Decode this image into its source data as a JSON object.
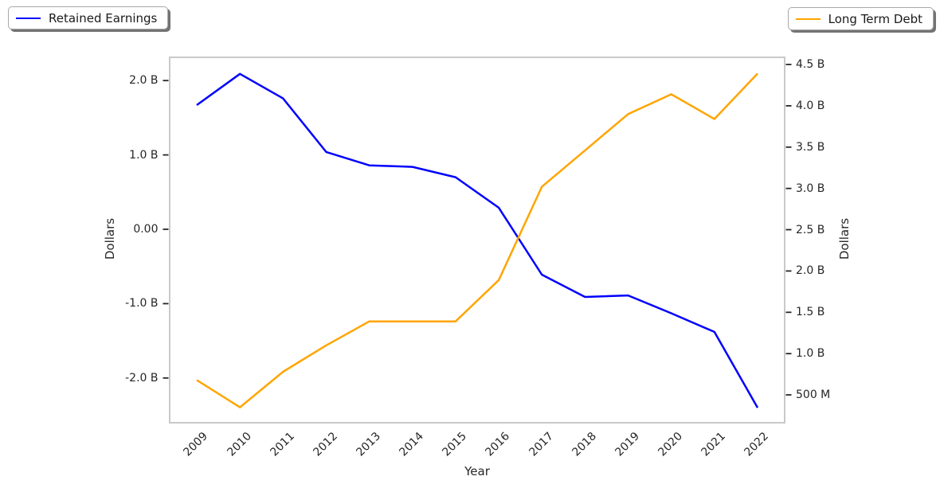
{
  "chart_data": {
    "type": "line",
    "title": "",
    "xlabel": "Year",
    "grid": false,
    "x": [
      2009,
      2010,
      2011,
      2012,
      2013,
      2014,
      2015,
      2016,
      2017,
      2018,
      2019,
      2020,
      2021,
      2022
    ],
    "x_tick_labels": [
      "2009",
      "2010",
      "2011",
      "2012",
      "2013",
      "2014",
      "2015",
      "2016",
      "2017",
      "2018",
      "2019",
      "2020",
      "2021",
      "2022"
    ],
    "units": "billions of dollars",
    "series": [
      {
        "name": "Retained Earnings",
        "axis": "left",
        "color": "#0000ff",
        "legend_position": "upper-left",
        "values_billions": [
          1.67,
          2.09,
          1.76,
          1.04,
          0.86,
          0.84,
          0.7,
          0.29,
          -0.61,
          -0.91,
          -0.89,
          -1.13,
          -1.38,
          -2.4
        ]
      },
      {
        "name": "Long Term Debt",
        "axis": "right",
        "color": "#ffa500",
        "legend_position": "upper-right",
        "values_billions": [
          0.68,
          0.35,
          0.78,
          1.1,
          1.39,
          1.39,
          1.39,
          1.89,
          3.02,
          3.46,
          3.9,
          4.14,
          3.84,
          4.39
        ]
      }
    ],
    "left_axis": {
      "label": "Dollars",
      "tick_labels": [
        "2.0 B",
        "1.0 B",
        "0.00",
        "-1.0 B",
        "-2.0 B"
      ],
      "tick_values": [
        2.0,
        1.0,
        0.0,
        -1.0,
        -2.0
      ],
      "range": [
        -2.602,
        2.313
      ]
    },
    "right_axis": {
      "label": "Dollars",
      "tick_labels": [
        "4.5 B",
        "4.0 B",
        "3.5 B",
        "3.0 B",
        "2.5 B",
        "2.0 B",
        "1.5 B",
        "1.0 B",
        "500 M"
      ],
      "tick_values": [
        4.5,
        4.0,
        3.5,
        3.0,
        2.5,
        2.0,
        1.5,
        1.0,
        0.5
      ],
      "range": [
        0.163,
        4.587
      ]
    },
    "colors": {
      "spine": "#c9c9c9",
      "tick_mark": "#262626",
      "text": "#262626",
      "background": "#ffffff"
    }
  }
}
